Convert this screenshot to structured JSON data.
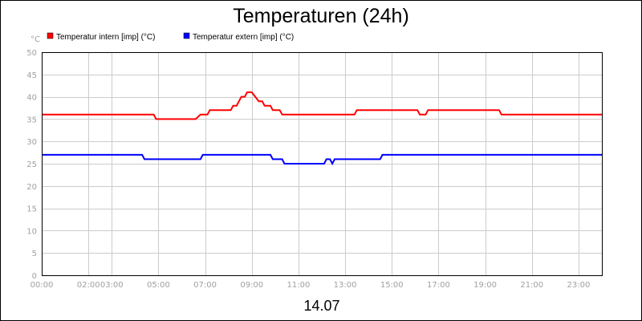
{
  "chart_data": {
    "type": "line",
    "title": "Temperaturen (24h)",
    "ylabel": "°C",
    "xlabel": "14.07",
    "ylim": [
      0,
      50
    ],
    "xlim": [
      0,
      24
    ],
    "y_ticks": [
      0,
      5,
      10,
      15,
      20,
      25,
      30,
      35,
      40,
      45,
      50
    ],
    "x_ticks": [
      {
        "x": 0,
        "label": "00:00"
      },
      {
        "x": 2,
        "label": "02:00"
      },
      {
        "x": 3,
        "label": "03:00"
      },
      {
        "x": 5,
        "label": "05:00"
      },
      {
        "x": 7,
        "label": "07:00"
      },
      {
        "x": 9,
        "label": "09:00"
      },
      {
        "x": 11,
        "label": "11:00"
      },
      {
        "x": 13,
        "label": "13:00"
      },
      {
        "x": 15,
        "label": "15:00"
      },
      {
        "x": 17,
        "label": "17:00"
      },
      {
        "x": 19,
        "label": "19:00"
      },
      {
        "x": 21,
        "label": "21:00"
      },
      {
        "x": 23,
        "label": "23:00"
      }
    ],
    "grid": true,
    "legend_position": "top-left",
    "series": [
      {
        "name": "Temperatur intern [imp] (°C)",
        "color": "#ff0000",
        "points": [
          [
            0,
            36
          ],
          [
            4.8,
            36
          ],
          [
            4.9,
            35
          ],
          [
            6.6,
            35
          ],
          [
            6.8,
            36
          ],
          [
            7.1,
            36
          ],
          [
            7.2,
            37
          ],
          [
            8.1,
            37
          ],
          [
            8.2,
            38
          ],
          [
            8.35,
            38
          ],
          [
            8.45,
            39
          ],
          [
            8.55,
            40
          ],
          [
            8.7,
            40
          ],
          [
            8.8,
            41
          ],
          [
            9.0,
            41
          ],
          [
            9.15,
            40
          ],
          [
            9.3,
            39
          ],
          [
            9.45,
            39
          ],
          [
            9.55,
            38
          ],
          [
            9.8,
            38
          ],
          [
            9.9,
            37
          ],
          [
            10.2,
            37
          ],
          [
            10.3,
            36
          ],
          [
            13.4,
            36
          ],
          [
            13.5,
            37
          ],
          [
            16.1,
            37
          ],
          [
            16.2,
            36
          ],
          [
            16.45,
            36
          ],
          [
            16.55,
            37
          ],
          [
            19.6,
            37
          ],
          [
            19.7,
            36
          ],
          [
            24,
            36
          ]
        ]
      },
      {
        "name": "Temperatur extern [imp] (°C)",
        "color": "#0000ff",
        "points": [
          [
            0,
            27
          ],
          [
            4.3,
            27
          ],
          [
            4.4,
            26
          ],
          [
            6.8,
            26
          ],
          [
            6.9,
            27
          ],
          [
            9.8,
            27
          ],
          [
            9.9,
            26
          ],
          [
            10.3,
            26
          ],
          [
            10.4,
            25
          ],
          [
            12.1,
            25
          ],
          [
            12.2,
            26
          ],
          [
            12.35,
            26
          ],
          [
            12.45,
            25
          ],
          [
            12.55,
            26
          ],
          [
            14.5,
            26
          ],
          [
            14.6,
            27
          ],
          [
            24,
            27
          ]
        ]
      }
    ]
  }
}
